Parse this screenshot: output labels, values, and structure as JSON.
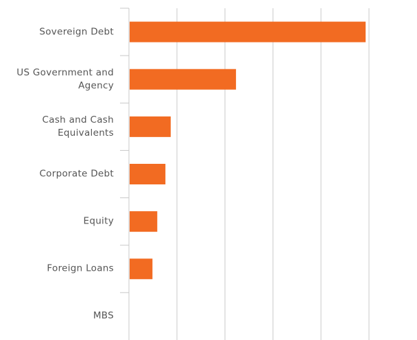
{
  "chart_data": {
    "type": "bar",
    "orientation": "horizontal",
    "categories": [
      "Sovereign Debt",
      "US Government and Agency",
      "Cash and Cash Equivalents",
      "Corporate Debt",
      "Equity",
      "Foreign Loans",
      "MBS"
    ],
    "values": [
      4.93,
      2.23,
      0.87,
      0.76,
      0.59,
      0.49,
      0
    ],
    "color": "#f26b22",
    "xlim": [
      0,
      6
    ],
    "xticks": [
      0,
      1,
      2,
      3,
      4,
      5
    ],
    "grid": true
  }
}
